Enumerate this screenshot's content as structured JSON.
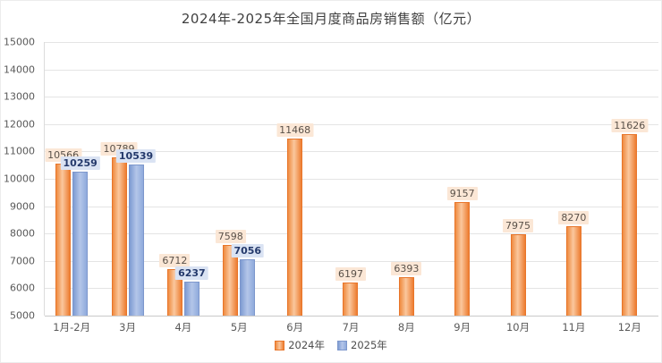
{
  "chart_data": {
    "type": "bar",
    "title": "2024年-2025年全国月度商品房销售额（亿元）",
    "categories": [
      "1月-2月",
      "3月",
      "4月",
      "5月",
      "6月",
      "7月",
      "8月",
      "9月",
      "10月",
      "11月",
      "12月"
    ],
    "series": [
      {
        "name": "2024年",
        "color": "#ED7D31",
        "values": [
          10566,
          10789,
          6712,
          7598,
          11468,
          6197,
          6393,
          9157,
          7975,
          8270,
          11626
        ]
      },
      {
        "name": "2025年",
        "color": "#8FAADC",
        "values": [
          10259,
          10539,
          6237,
          7056,
          null,
          null,
          null,
          null,
          null,
          null,
          null
        ]
      }
    ],
    "ylim": [
      5000,
      15000
    ],
    "ytick_step": 1000,
    "ytick_labels": [
      "15000",
      "14000",
      "13000",
      "12000",
      "11000",
      "10000",
      "9000",
      "8000",
      "7000",
      "6000",
      "5000"
    ],
    "grid": true,
    "legend_position": "bottom",
    "data_labels": true
  }
}
